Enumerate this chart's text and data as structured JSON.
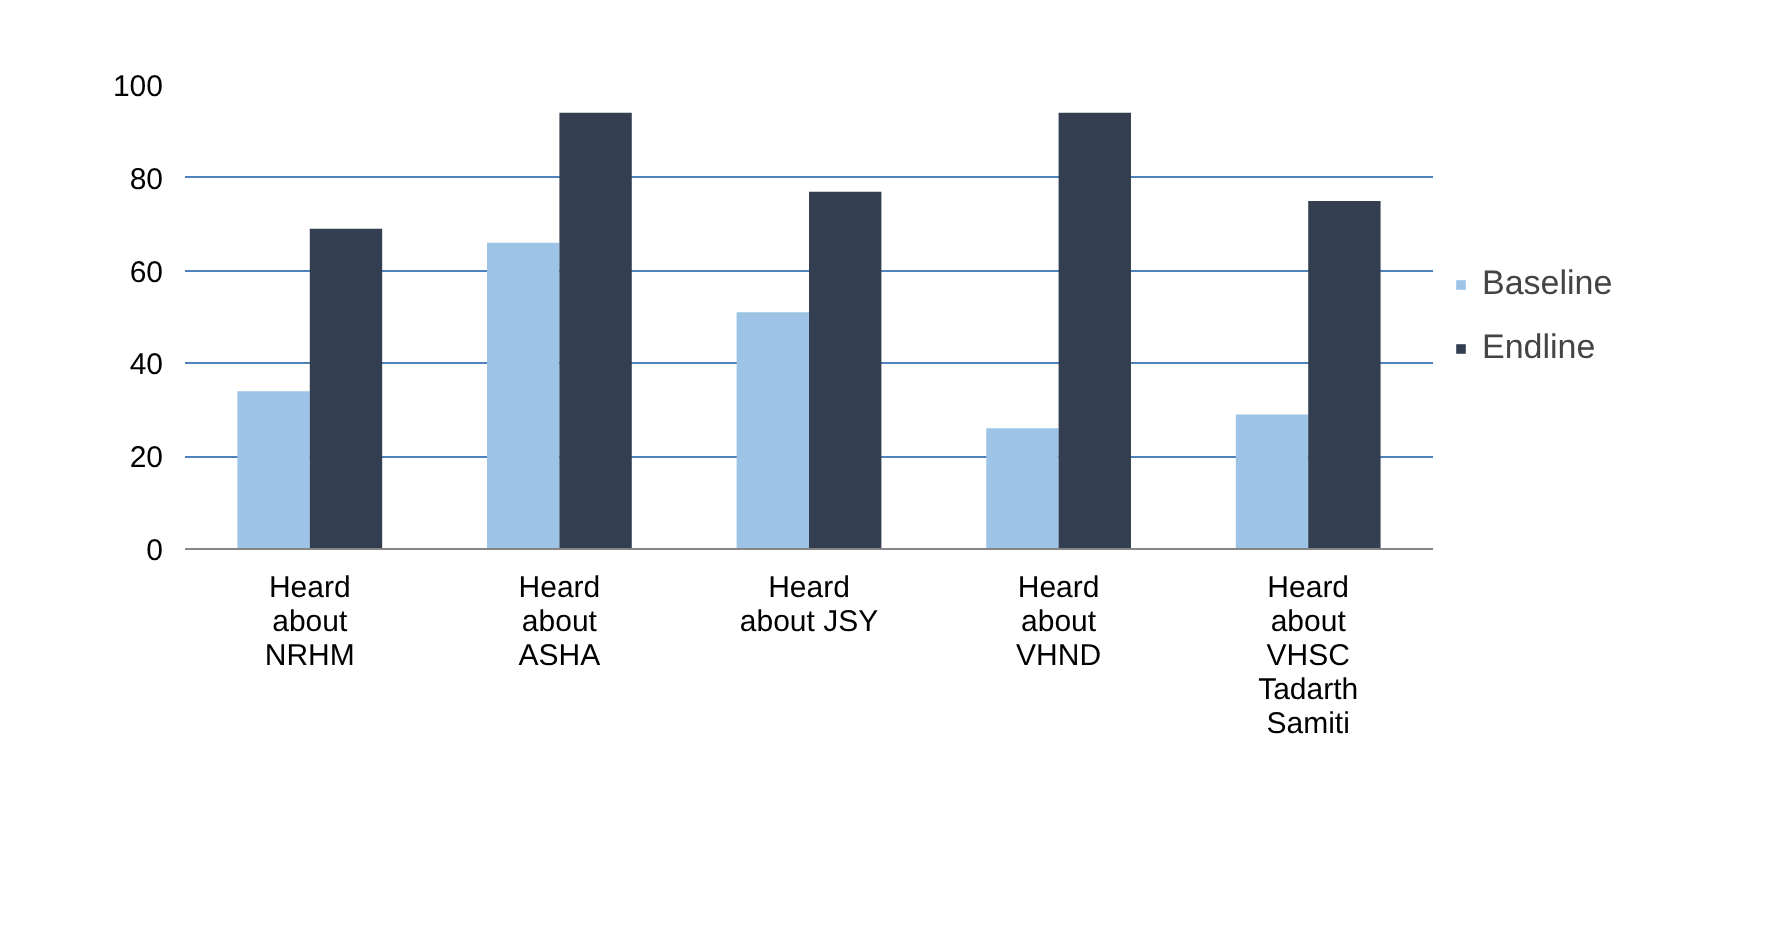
{
  "chart_data": {
    "type": "bar",
    "categories": [
      "Heard about NRHM",
      "Heard about ASHA",
      "Heard about JSY",
      "Heard about VHND",
      "Heard about VHSC Tadarth Samiti"
    ],
    "series": [
      {
        "name": "Baseline",
        "color": "#9dc3e6",
        "values": [
          34,
          66,
          51,
          26,
          29
        ]
      },
      {
        "name": "Endline",
        "color": "#333f50",
        "values": [
          69,
          94,
          77,
          94,
          75
        ]
      }
    ],
    "ylim": [
      0,
      100
    ],
    "yticks": [
      0,
      20,
      40,
      60,
      80,
      100
    ],
    "grid": "y",
    "legend": "right"
  }
}
